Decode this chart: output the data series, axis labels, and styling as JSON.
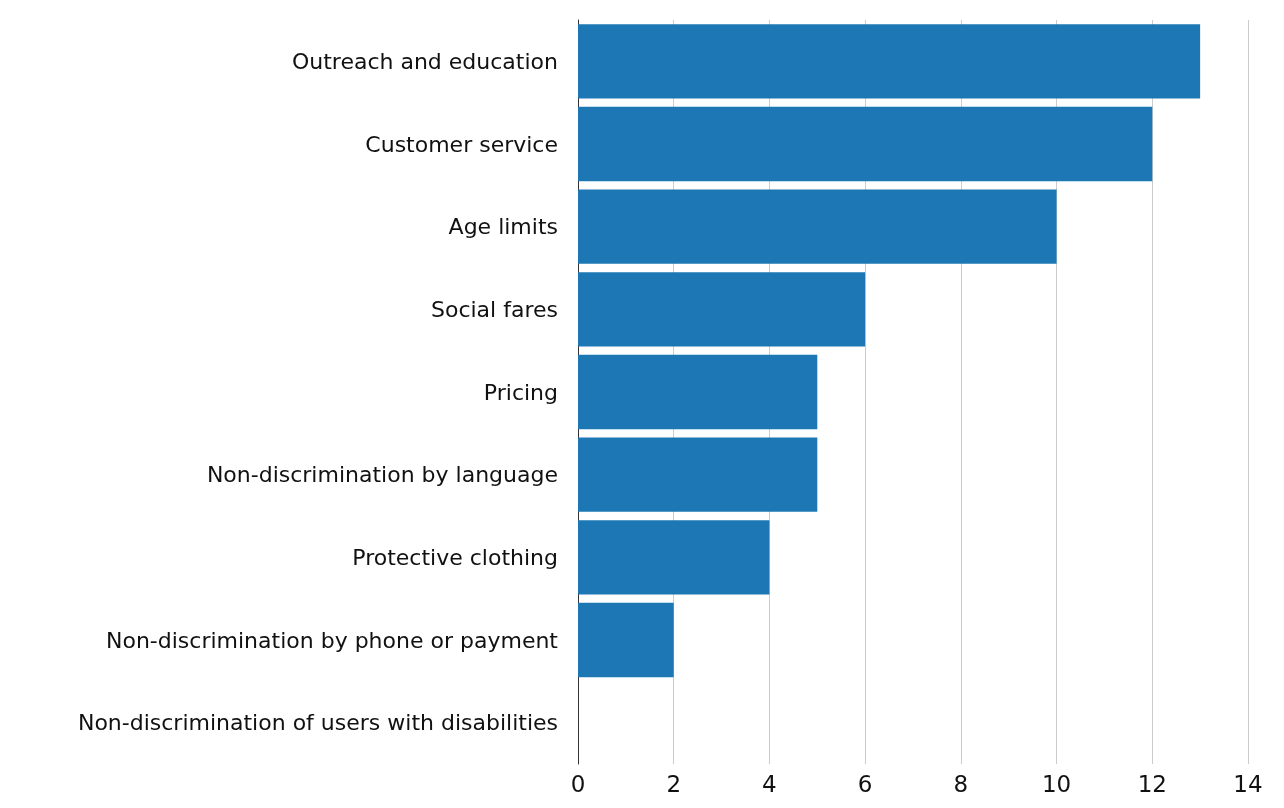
{
  "chart_data": {
    "type": "bar",
    "orientation": "horizontal",
    "categories": [
      "Outreach and education",
      "Customer service",
      "Age limits",
      "Social fares",
      "Pricing",
      "Non-discrimination by language",
      "Protective clothing",
      "Non-discrimination by phone or payment",
      "Non-discrimination of users with disabilities"
    ],
    "values": [
      13,
      12,
      10,
      6,
      5,
      5,
      4,
      2,
      0
    ],
    "color": "#1c77b4",
    "xlim": [
      0,
      14
    ],
    "xticks": [
      0,
      2,
      4,
      6,
      8,
      10,
      12,
      14
    ],
    "grid": "x"
  }
}
